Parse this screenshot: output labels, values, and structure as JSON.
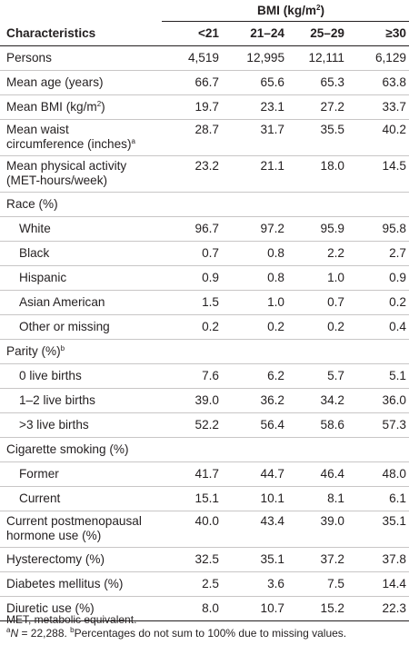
{
  "header": {
    "group_label": "BMI (kg/m",
    "group_label_sup": "2",
    "group_label_end": ")",
    "characteristics_label": "Characteristics",
    "columns": [
      "<21",
      "21–24",
      "25–29",
      "≥30"
    ]
  },
  "rows": [
    {
      "label": "Persons",
      "values": [
        "4,519",
        "12,995",
        "12,111",
        "6,129"
      ]
    },
    {
      "label": "Mean age (years)",
      "values": [
        "66.7",
        "65.6",
        "65.3",
        "63.8"
      ]
    },
    {
      "label": "Mean BMI (kg/m",
      "label_sup": "2",
      "label_end": ")",
      "values": [
        "19.7",
        "23.1",
        "27.2",
        "33.7"
      ]
    },
    {
      "label_line1": "Mean waist",
      "label_line2": "circumference (inches)",
      "label_sup": "a",
      "values": [
        "28.7",
        "31.7",
        "35.5",
        "40.2"
      ]
    },
    {
      "label_line1": "Mean physical activity",
      "label_line2": "(MET-hours/week)",
      "values": [
        "23.2",
        "21.1",
        "18.0",
        "14.5"
      ]
    },
    {
      "label": "Race (%)",
      "values": [
        "",
        "",
        "",
        ""
      ]
    },
    {
      "label": "White",
      "values": [
        "96.7",
        "97.2",
        "95.9",
        "95.8"
      ]
    },
    {
      "label": "Black",
      "values": [
        "0.7",
        "0.8",
        "2.2",
        "2.7"
      ]
    },
    {
      "label": "Hispanic",
      "values": [
        "0.9",
        "0.8",
        "1.0",
        "0.9"
      ]
    },
    {
      "label": "Asian American",
      "values": [
        "1.5",
        "1.0",
        "0.7",
        "0.2"
      ]
    },
    {
      "label": "Other or missing",
      "values": [
        "0.2",
        "0.2",
        "0.2",
        "0.4"
      ]
    },
    {
      "label": "Parity (%)",
      "label_sup": "b",
      "values": [
        "",
        "",
        "",
        ""
      ]
    },
    {
      "label": "0 live births",
      "values": [
        "7.6",
        "6.2",
        "5.7",
        "5.1"
      ]
    },
    {
      "label": "1–2 live births",
      "values": [
        "39.0",
        "36.2",
        "34.2",
        "36.0"
      ]
    },
    {
      "label": ">3 live births",
      "values": [
        "52.2",
        "56.4",
        "58.6",
        "57.3"
      ]
    },
    {
      "label": "Cigarette smoking (%)",
      "values": [
        "",
        "",
        "",
        ""
      ]
    },
    {
      "label": "Former",
      "values": [
        "41.7",
        "44.7",
        "46.4",
        "48.0"
      ]
    },
    {
      "label": "Current",
      "values": [
        "15.1",
        "10.1",
        "8.1",
        "6.1"
      ]
    },
    {
      "label_line1": "Current postmenopausal",
      "label_line2": "hormone use (%)",
      "values": [
        "40.0",
        "43.4",
        "39.0",
        "35.1"
      ]
    },
    {
      "label": "Hysterectomy (%)",
      "values": [
        "32.5",
        "35.1",
        "37.2",
        "37.8"
      ]
    },
    {
      "label": "Diabetes mellitus (%)",
      "values": [
        "2.5",
        "3.6",
        "7.5",
        "14.4"
      ]
    },
    {
      "label": "Diuretic use (%)",
      "values": [
        "8.0",
        "10.7",
        "15.2",
        "22.3"
      ]
    }
  ],
  "footnotes": {
    "abbrev": "MET, metabolic equivalent.",
    "note_a_sup": "a",
    "note_a_var": "N",
    "note_a_text": " = 22,288. ",
    "note_b_sup": "b",
    "note_b_text": "Percentages do not sum to 100% due to missing values."
  }
}
